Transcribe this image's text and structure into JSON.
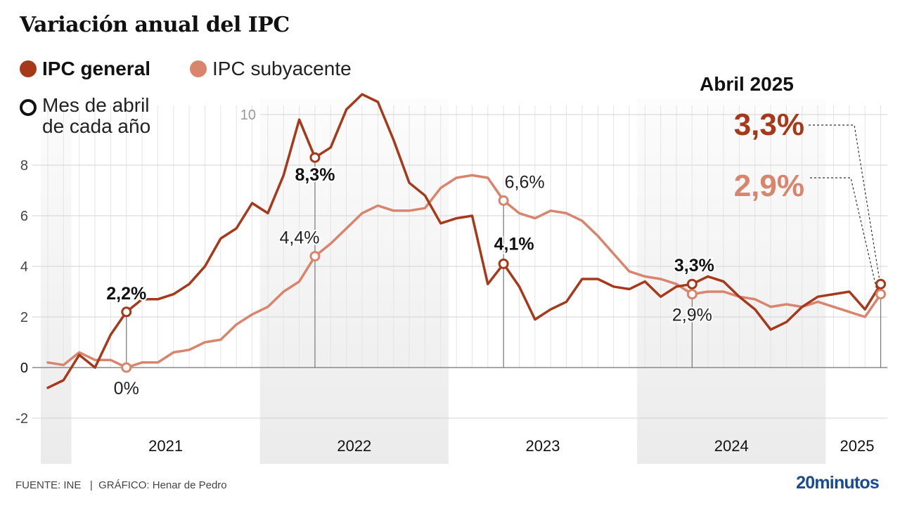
{
  "title": "Variación anual del IPC",
  "legend": {
    "general": "IPC general",
    "subyacente": "IPC subyacente",
    "april_line1": "Mes de abril",
    "april_line2": "de cada año"
  },
  "side_panel": {
    "title": "Abril 2025",
    "general_value": "3,3%",
    "subyacente_value": "2,9%"
  },
  "footer": {
    "source": "FUENTE: INE   |  GRÁFICO: Henar de Pedro",
    "brand": "20minutos"
  },
  "colors": {
    "general": "#a6391a",
    "subyacente": "#d9846c",
    "band": "#ebebeb",
    "brand": "#1a4a94"
  },
  "chart_data": {
    "type": "line",
    "title": "Variación anual del IPC",
    "xlabel": "",
    "ylabel": "",
    "ylim": [
      -2.5,
      11
    ],
    "yticks": [
      -2,
      0,
      2,
      4,
      6,
      8,
      10
    ],
    "ytick_labels": [
      "-2",
      "0",
      "2",
      "4",
      "6",
      "8",
      "10"
    ],
    "grid": true,
    "legend_position": "top-left",
    "x": [
      "nov-2020",
      "dic-2020",
      "ene-2021",
      "feb-2021",
      "mar-2021",
      "abr-2021",
      "may-2021",
      "jun-2021",
      "jul-2021",
      "ago-2021",
      "sep-2021",
      "oct-2021",
      "nov-2021",
      "dic-2021",
      "ene-2022",
      "feb-2022",
      "mar-2022",
      "abr-2022",
      "may-2022",
      "jun-2022",
      "jul-2022",
      "ago-2022",
      "sep-2022",
      "oct-2022",
      "nov-2022",
      "dic-2022",
      "ene-2023",
      "feb-2023",
      "mar-2023",
      "abr-2023",
      "may-2023",
      "jun-2023",
      "jul-2023",
      "ago-2023",
      "sep-2023",
      "oct-2023",
      "nov-2023",
      "dic-2023",
      "ene-2024",
      "feb-2024",
      "mar-2024",
      "abr-2024",
      "may-2024",
      "jun-2024",
      "jul-2024",
      "ago-2024",
      "sep-2024",
      "oct-2024",
      "nov-2024",
      "dic-2024",
      "ene-2025",
      "feb-2025",
      "mar-2025",
      "abr-2025"
    ],
    "year_bands": [
      {
        "label": "",
        "start": 0,
        "end": 1,
        "shaded": true
      },
      {
        "label": "2021",
        "start": 2,
        "end": 13,
        "shaded": false
      },
      {
        "label": "2022",
        "start": 14,
        "end": 25,
        "shaded": true
      },
      {
        "label": "2023",
        "start": 26,
        "end": 37,
        "shaded": false
      },
      {
        "label": "2024",
        "start": 38,
        "end": 49,
        "shaded": true
      },
      {
        "label": "2025",
        "start": 50,
        "end": 53,
        "shaded": false
      }
    ],
    "series": [
      {
        "name": "IPC general",
        "values": [
          -0.8,
          -0.5,
          0.5,
          0.0,
          1.3,
          2.2,
          2.7,
          2.7,
          2.9,
          3.3,
          4.0,
          5.1,
          5.5,
          6.5,
          6.1,
          7.6,
          9.8,
          8.3,
          8.7,
          10.2,
          10.8,
          10.5,
          9.0,
          7.3,
          6.8,
          5.7,
          5.9,
          6.0,
          3.3,
          4.1,
          3.2,
          1.9,
          2.3,
          2.6,
          3.5,
          3.5,
          3.2,
          3.1,
          3.4,
          2.8,
          3.2,
          3.3,
          3.6,
          3.4,
          2.8,
          2.3,
          1.5,
          1.8,
          2.4,
          2.8,
          2.9,
          3.0,
          2.3,
          3.3
        ]
      },
      {
        "name": "IPC subyacente",
        "values": [
          0.2,
          0.1,
          0.6,
          0.3,
          0.3,
          0.0,
          0.2,
          0.2,
          0.6,
          0.7,
          1.0,
          1.1,
          1.7,
          2.1,
          2.4,
          3.0,
          3.4,
          4.4,
          4.9,
          5.5,
          6.1,
          6.4,
          6.2,
          6.2,
          6.3,
          7.1,
          7.5,
          7.6,
          7.5,
          6.6,
          6.1,
          5.9,
          6.2,
          6.1,
          5.8,
          5.2,
          4.5,
          3.8,
          3.6,
          3.5,
          3.3,
          2.9,
          3.0,
          3.0,
          2.8,
          2.7,
          2.4,
          2.5,
          2.4,
          2.6,
          2.4,
          2.2,
          2.0,
          2.9
        ]
      }
    ],
    "april_markers": [
      {
        "index": 5,
        "general_label": "2,2%",
        "sub_label": "0%"
      },
      {
        "index": 17,
        "general_label": "8,3%",
        "sub_label": "4,4%"
      },
      {
        "index": 29,
        "general_label": "4,1%",
        "sub_label": "6,6%"
      },
      {
        "index": 41,
        "general_label": "3,3%",
        "sub_label": "2,9%"
      },
      {
        "index": 53,
        "general_label": "3,3%",
        "sub_label": "2,9%"
      }
    ]
  }
}
